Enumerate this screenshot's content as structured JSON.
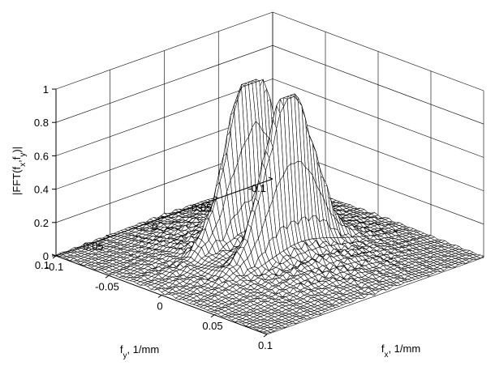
{
  "chart_data": {
    "type": "surface",
    "title": "",
    "xlabel": "f_x, 1/mm",
    "ylabel": "f_y, 1/mm",
    "zlabel": "|FFT(f_x,f_y)|",
    "xlim": [
      -0.1,
      0.1
    ],
    "ylim": [
      -0.1,
      0.1
    ],
    "zlim": [
      0,
      1
    ],
    "x_ticks": [
      "-0.1",
      "-0.05",
      "0",
      "0.05",
      "0.1"
    ],
    "y_ticks": [
      "-0.1",
      "-0.05",
      "0",
      "0.05",
      "0.1"
    ],
    "z_ticks": [
      "0",
      "0.2",
      "0.4",
      "0.6",
      "0.8",
      "1"
    ],
    "grid": true,
    "series": [
      {
        "values_description_peaks": [
          {
            "fx": -0.018,
            "fy": 0.0,
            "z": 1.0
          },
          {
            "fx": 0.018,
            "fy": 0.0,
            "z": 0.96
          }
        ],
        "background_level_max": 0.2
      }
    ]
  }
}
